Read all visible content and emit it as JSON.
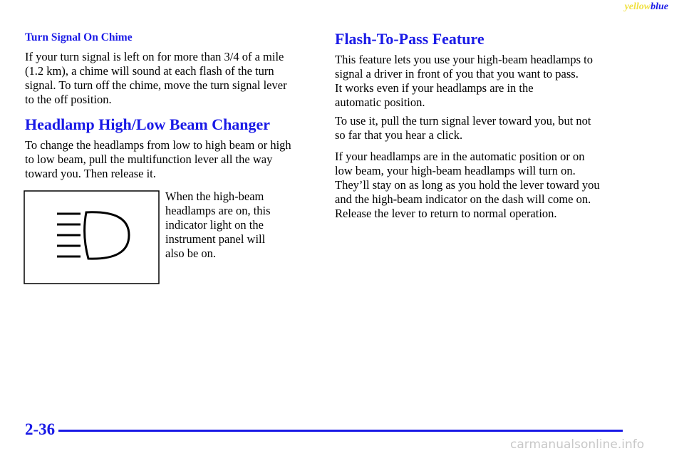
{
  "header": {
    "tag_yellow": "yellow",
    "tag_blue": "blue"
  },
  "left": {
    "subheading": "Turn Signal On Chime",
    "para1": [
      "If your turn signal is left on for more than 3/4 of a mile",
      "(1.2 km), a chime will sound at each flash of the turn",
      "signal. To turn off the chime, move the turn signal lever",
      "to the off position."
    ],
    "heading": "Headlamp High/Low Beam Changer",
    "para2": [
      "To change the headlamps from low to high beam or high",
      "to low beam, pull the multifunction lever all the way",
      "toward you. Then release it."
    ],
    "caption": [
      "When the high-beam",
      "headlamps are on, this",
      "indicator light on the",
      "instrument panel will",
      "also be on."
    ]
  },
  "right": {
    "heading": "Flash-To-Pass Feature",
    "paras": [
      [
        "This feature lets you use your high-beam headlamps to",
        "signal a driver in front of you that you want to pass.",
        "It works even if your headlamps are in the",
        "automatic position."
      ],
      [
        "To use it, pull the turn signal lever toward you, but not",
        "so far that you hear a click."
      ],
      [
        "If your headlamps are in the automatic position or on",
        "low beam, your high-beam headlamps will turn on.",
        "They’ll stay on as long as you hold the lever toward you",
        "and the high-beam indicator on the dash will come on.",
        "Release the lever to return to normal operation."
      ]
    ]
  },
  "footer": {
    "page_number": "2-36",
    "watermark": "carmanualsonline.info"
  }
}
